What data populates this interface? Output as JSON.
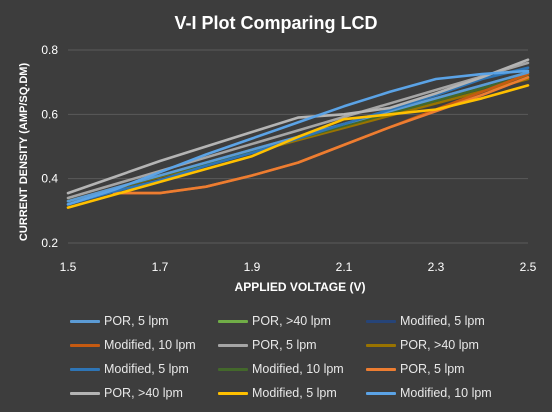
{
  "chart_data": {
    "type": "line",
    "title": "V-I Plot Comparing LCD",
    "xlabel": "APPLIED VOLTAGE (V)",
    "ylabel": "CURRENT DENSITY (AMP/SQ.DM)",
    "xlim": [
      1.5,
      2.5
    ],
    "ylim": [
      0.2,
      0.8
    ],
    "xticks": [
      "1.5",
      "1.7",
      "1.9",
      "2.1",
      "2.3",
      "2.5"
    ],
    "yticks": [
      "0.2",
      "0.4",
      "0.6",
      "0.8"
    ],
    "grid": true,
    "legend_position": "bottom",
    "series": [
      {
        "name": "POR, 5 lpm",
        "color": "#5b9bd5",
        "x": [
          1.5,
          1.6,
          1.7,
          1.8,
          1.9,
          2.0,
          2.1,
          2.2,
          2.3,
          2.4,
          2.5
        ],
        "y": [
          0.33,
          0.37,
          0.41,
          0.45,
          0.49,
          0.53,
          0.57,
          0.61,
          0.65,
          0.69,
          0.73
        ]
      },
      {
        "name": "POR, >40 lpm",
        "color": "#70ad47",
        "x": [
          1.5,
          2.5
        ],
        "y": [
          0.33,
          0.73
        ]
      },
      {
        "name": "Modified, 5 lpm",
        "color": "#264478",
        "x": [
          1.5,
          2.5
        ],
        "y": [
          0.33,
          0.73
        ]
      },
      {
        "name": "Modified, 10 lpm",
        "color": "#c55a11",
        "x": [
          1.6,
          1.7,
          1.8,
          1.9,
          2.0,
          2.1,
          2.2,
          2.3,
          2.4,
          2.5
        ],
        "y": [
          0.355,
          0.355,
          0.375,
          0.41,
          0.45,
          0.505,
          0.56,
          0.615,
          0.67,
          0.725
        ]
      },
      {
        "name": "POR, 5 lpm",
        "color": "#a5a5a5",
        "x": [
          1.5,
          2.5
        ],
        "y": [
          0.34,
          0.76
        ]
      },
      {
        "name": "POR, >40 lpm",
        "color": "#997300",
        "x": [
          1.5,
          2.5
        ],
        "y": [
          0.33,
          0.71
        ]
      },
      {
        "name": "Modified, 5 lpm",
        "color": "#2e75b6",
        "x": [
          1.5,
          1.6,
          1.7,
          1.8,
          1.9,
          2.0,
          2.1,
          2.2,
          2.3,
          2.4,
          2.5
        ],
        "y": [
          0.32,
          0.36,
          0.395,
          0.44,
          0.48,
          0.525,
          0.57,
          0.615,
          0.66,
          0.71,
          0.745
        ]
      },
      {
        "name": "Modified, 10 lpm",
        "color": "#43682b",
        "x": [
          1.5,
          2.5
        ],
        "y": [
          0.33,
          0.72
        ]
      },
      {
        "name": "POR, 5 lpm",
        "color": "#ed7d31",
        "x": [
          1.6,
          1.7,
          1.8,
          1.9,
          2.0,
          2.1,
          2.2,
          2.3,
          2.4,
          2.5
        ],
        "y": [
          0.355,
          0.355,
          0.375,
          0.41,
          0.45,
          0.505,
          0.56,
          0.61,
          0.66,
          0.715
        ]
      },
      {
        "name": "POR, >40 lpm",
        "color": "#b4b4b4",
        "x": [
          1.5,
          1.6,
          1.7,
          1.8,
          1.9,
          2.0,
          2.1,
          2.2,
          2.3,
          2.4,
          2.5
        ],
        "y": [
          0.355,
          0.405,
          0.455,
          0.5,
          0.545,
          0.59,
          0.6,
          0.62,
          0.665,
          0.715,
          0.77
        ]
      },
      {
        "name": "Modified, 5 lpm",
        "color": "#ffc000",
        "x": [
          1.5,
          1.6,
          1.7,
          1.8,
          1.9,
          2.0,
          2.1,
          2.2,
          2.3,
          2.4,
          2.5
        ],
        "y": [
          0.31,
          0.35,
          0.39,
          0.43,
          0.47,
          0.53,
          0.585,
          0.6,
          0.615,
          0.65,
          0.69
        ]
      },
      {
        "name": "Modified, 10 lpm",
        "color": "#5ba3e6",
        "x": [
          1.5,
          1.6,
          1.7,
          1.8,
          1.9,
          2.0,
          2.1,
          2.2,
          2.3,
          2.4,
          2.5
        ],
        "y": [
          0.32,
          0.365,
          0.42,
          0.475,
          0.525,
          0.575,
          0.625,
          0.67,
          0.71,
          0.725,
          0.735
        ]
      }
    ]
  }
}
